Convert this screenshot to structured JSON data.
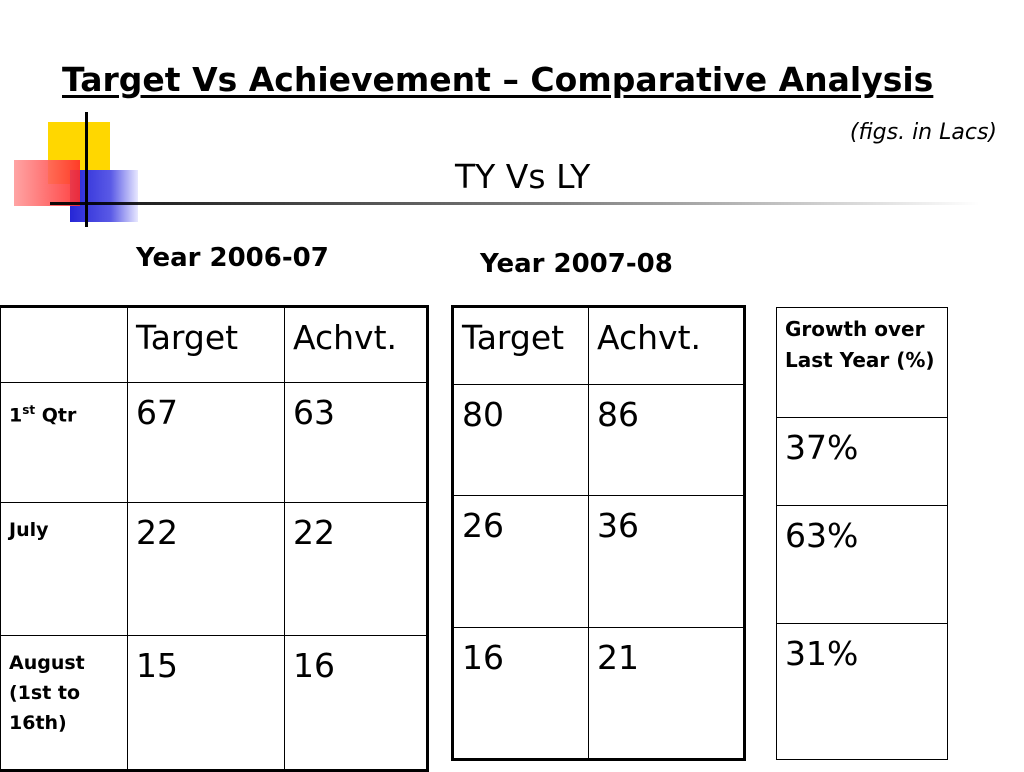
{
  "title": "Target Vs Achievement – Comparative Analysis",
  "subtitle": "(figs. in Lacs)",
  "heading": "TY Vs LY",
  "decoration": {
    "yellow": "#FFD700",
    "blue": "#2E2ED6",
    "red": "#FF3B3B"
  },
  "chart_data": {
    "type": "table",
    "year1": {
      "label": "Year 2006-07",
      "columns": [
        "Target",
        "Achvt."
      ],
      "rows": [
        {
          "label": "1",
          "label_sup": "st",
          "label_rest": " Qtr",
          "target": "67",
          "achvt": "63"
        },
        {
          "label": "July",
          "label_sup": "",
          "label_rest": "",
          "target": "22",
          "achvt": "22"
        },
        {
          "label": "August (1st to 16th)",
          "label_sup": "",
          "label_rest": "",
          "target": "15",
          "achvt": "16"
        }
      ]
    },
    "year2": {
      "label": "Year 2007-08",
      "columns": [
        "Target",
        "Achvt."
      ],
      "rows": [
        {
          "target": "80",
          "achvt": "86"
        },
        {
          "target": "26",
          "achvt": "36"
        },
        {
          "target": "16",
          "achvt": "21"
        }
      ]
    },
    "growth": {
      "header": "Growth over Last Year (%)",
      "values": [
        "37%",
        "63%",
        "31%"
      ]
    }
  }
}
